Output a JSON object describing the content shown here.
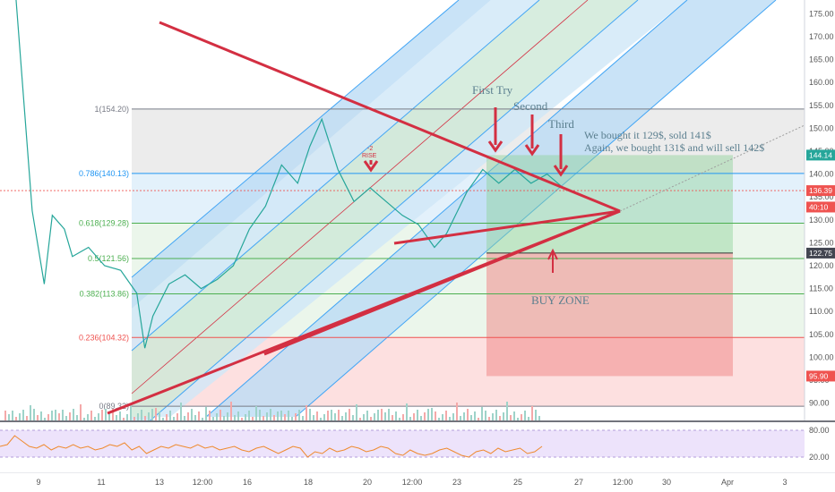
{
  "chart_data": {
    "type": "line",
    "x_tick_labels": [
      "9",
      "11",
      "13",
      "12:00",
      "16",
      "18",
      "20",
      "12:00",
      "23",
      "25",
      "27",
      "12:00",
      "30",
      "Apr",
      "3"
    ],
    "y_tick_labels": [
      "90.00",
      "95.00",
      "100.00",
      "105.00",
      "110.00",
      "115.00",
      "120.00",
      "125.00",
      "130.00",
      "135.00",
      "140.00",
      "145.00",
      "150.00",
      "155.00",
      "160.00",
      "165.00",
      "170.00",
      "175.00"
    ],
    "ylim": [
      87,
      178
    ],
    "price_labels": [
      {
        "text": "144.14",
        "value": 144.14,
        "color": "#26a69a"
      },
      {
        "text": "136.39",
        "value": 136.39,
        "color": "#ef5350"
      },
      {
        "text": "40:10",
        "value": 132.8,
        "color": "#ef5350"
      },
      {
        "text": "122.75",
        "value": 122.75,
        "color": "#434651"
      },
      {
        "text": "95.90",
        "value": 95.9,
        "color": "#ef5350"
      }
    ],
    "fib_levels": [
      {
        "label": "1(154.20)",
        "value": 154.2,
        "color": "#787b86"
      },
      {
        "label": "0.786(140.13)",
        "value": 140.13,
        "color": "#2196f3"
      },
      {
        "label": "0.618(129.28)",
        "value": 129.28,
        "color": "#4caf50"
      },
      {
        "label": "0.5(121.56)",
        "value": 121.56,
        "color": "#4caf50"
      },
      {
        "label": "0.382(113.86)",
        "value": 113.86,
        "color": "#4caf50"
      },
      {
        "label": "0.236(104.32)",
        "value": 104.32,
        "color": "#ef5350"
      },
      {
        "label": "0(89.32)",
        "value": 89.32,
        "color": "#787b86"
      }
    ],
    "annotations": {
      "first_try": "First Try",
      "second": "Second",
      "third": "Third",
      "note_line1": "We bought it 129$, sold 141$",
      "note_line2": "Again, we bought 131$ and will sell 142$",
      "buy_zone": "BUY ZONE",
      "rise_label": "RISE",
      "rise_num": "-2"
    },
    "rsi_tick_labels": [
      "80.00",
      "20.00"
    ],
    "price_series": [
      [
        0.02,
        178
      ],
      [
        0.04,
        132
      ],
      [
        0.055,
        116
      ],
      [
        0.065,
        131
      ],
      [
        0.08,
        128
      ],
      [
        0.09,
        122
      ],
      [
        0.11,
        124
      ],
      [
        0.13,
        120
      ],
      [
        0.15,
        119
      ],
      [
        0.17,
        114
      ],
      [
        0.18,
        102
      ],
      [
        0.19,
        109
      ],
      [
        0.21,
        116
      ],
      [
        0.23,
        118
      ],
      [
        0.25,
        115
      ],
      [
        0.27,
        117
      ],
      [
        0.29,
        120
      ],
      [
        0.31,
        128
      ],
      [
        0.33,
        133
      ],
      [
        0.35,
        142
      ],
      [
        0.37,
        138
      ],
      [
        0.385,
        146
      ],
      [
        0.4,
        152
      ],
      [
        0.42,
        141
      ],
      [
        0.44,
        134
      ],
      [
        0.46,
        137
      ],
      [
        0.48,
        134
      ],
      [
        0.5,
        131
      ],
      [
        0.52,
        129
      ],
      [
        0.54,
        124
      ],
      [
        0.555,
        127
      ],
      [
        0.58,
        136
      ],
      [
        0.6,
        141
      ],
      [
        0.62,
        138
      ],
      [
        0.64,
        141
      ],
      [
        0.66,
        138
      ],
      [
        0.68,
        140
      ],
      [
        0.7,
        137
      ]
    ],
    "rsi_series": [
      0.55,
      0.6,
      0.85,
      0.7,
      0.55,
      0.5,
      0.6,
      0.45,
      0.55,
      0.5,
      0.6,
      0.5,
      0.55,
      0.45,
      0.5,
      0.6,
      0.55,
      0.65,
      0.45,
      0.55,
      0.35,
      0.45,
      0.55,
      0.5,
      0.6,
      0.55,
      0.5,
      0.6,
      0.5,
      0.55,
      0.45,
      0.5,
      0.55,
      0.45,
      0.4,
      0.5,
      0.55,
      0.45,
      0.35,
      0.45,
      0.55,
      0.5,
      0.25,
      0.4,
      0.35,
      0.5,
      0.4,
      0.45,
      0.55,
      0.5,
      0.4,
      0.45,
      0.55,
      0.5,
      0.35,
      0.3,
      0.45,
      0.35,
      0.3,
      0.35,
      0.45,
      0.5,
      0.4,
      0.3,
      0.25,
      0.4,
      0.45,
      0.35,
      0.5,
      0.4,
      0.45,
      0.5,
      0.35,
      0.4,
      0.55
    ],
    "colors": {
      "trendline": "#d32f42",
      "channel": "#42a5f5",
      "rsi": "#ef8a2e",
      "fib_gray": "#e6e6e6",
      "fib_blue": "#d9ecfa",
      "fib_green": "#e4f3e4",
      "fib_red": "#fcd6d6"
    }
  }
}
